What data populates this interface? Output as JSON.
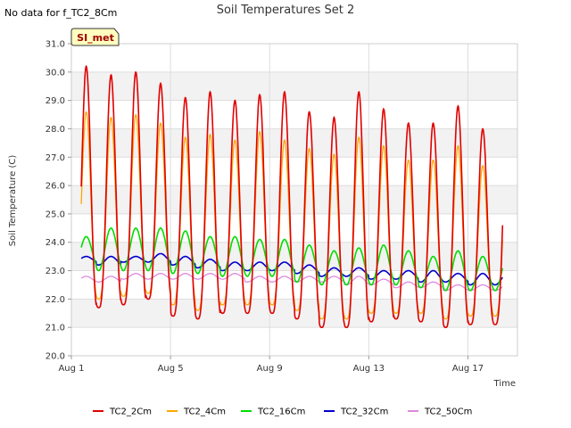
{
  "header": {
    "no_data_text": "No data for f_TC2_8Cm",
    "badge_label": "SI_met"
  },
  "chart_data": {
    "type": "line",
    "title": "Soil Temperatures Set 2",
    "xlabel": "Time",
    "ylabel": "Soil Temperature (C)",
    "ylim": [
      20.0,
      31.0
    ],
    "yticks": [
      "20.0",
      "21.0",
      "22.0",
      "23.0",
      "24.0",
      "25.0",
      "26.0",
      "27.0",
      "28.0",
      "29.0",
      "30.0",
      "31.0"
    ],
    "xlim_days": [
      1,
      19
    ],
    "xticks": [
      {
        "day": 1,
        "label": "Aug 1"
      },
      {
        "day": 5,
        "label": "Aug 5"
      },
      {
        "day": 9,
        "label": "Aug 9"
      },
      {
        "day": 13,
        "label": "Aug 13"
      },
      {
        "day": 17,
        "label": "Aug 17"
      }
    ],
    "grid": true,
    "legend_position": "bottom",
    "series": [
      {
        "name": "TC2_2Cm",
        "color": "#e00000",
        "daily_max": [
          30.2,
          29.9,
          30.0,
          29.6,
          29.1,
          29.3,
          29.0,
          29.2,
          29.3,
          28.6,
          28.4,
          29.3,
          28.7,
          28.2,
          28.2,
          28.8,
          28.0
        ],
        "daily_min": [
          21.6,
          21.7,
          21.8,
          22.0,
          21.4,
          21.3,
          21.5,
          21.5,
          21.5,
          21.3,
          21.0,
          21.0,
          21.2,
          21.3,
          21.2,
          21.0,
          21.1
        ]
      },
      {
        "name": "TC2_4Cm",
        "color": "#ffa500",
        "daily_max": [
          28.6,
          28.4,
          28.5,
          28.2,
          27.7,
          27.8,
          27.6,
          27.9,
          27.6,
          27.3,
          27.1,
          27.7,
          27.4,
          26.9,
          26.9,
          27.4,
          26.7
        ],
        "daily_min": [
          22.0,
          22.0,
          22.1,
          22.2,
          21.8,
          21.6,
          21.8,
          21.8,
          21.8,
          21.6,
          21.3,
          21.3,
          21.5,
          21.5,
          21.5,
          21.3,
          21.4
        ]
      },
      {
        "name": "TC2_16Cm",
        "color": "#00dd00",
        "daily_max": [
          24.2,
          24.5,
          24.5,
          24.5,
          24.4,
          24.2,
          24.2,
          24.1,
          24.1,
          23.9,
          23.7,
          23.8,
          23.9,
          23.7,
          23.5,
          23.7,
          23.5
        ],
        "daily_min": [
          23.1,
          23.0,
          23.0,
          23.0,
          22.9,
          22.9,
          22.8,
          22.8,
          22.8,
          22.6,
          22.5,
          22.5,
          22.5,
          22.5,
          22.4,
          22.3,
          22.3
        ]
      },
      {
        "name": "TC2_32Cm",
        "color": "#0000cc",
        "daily_max": [
          23.5,
          23.5,
          23.5,
          23.6,
          23.5,
          23.4,
          23.3,
          23.3,
          23.3,
          23.2,
          23.1,
          23.1,
          23.0,
          23.0,
          23.0,
          22.9,
          22.9
        ],
        "daily_min": [
          23.3,
          23.2,
          23.3,
          23.3,
          23.2,
          23.1,
          23.0,
          23.0,
          23.0,
          22.9,
          22.8,
          22.8,
          22.7,
          22.7,
          22.6,
          22.6,
          22.5
        ]
      },
      {
        "name": "TC2_50Cm",
        "color": "#dd88dd",
        "daily_max": [
          22.8,
          22.8,
          22.9,
          22.9,
          22.9,
          22.9,
          22.9,
          22.8,
          22.8,
          22.8,
          22.8,
          22.8,
          22.7,
          22.6,
          22.6,
          22.5,
          22.5
        ],
        "daily_min": [
          22.6,
          22.6,
          22.7,
          22.7,
          22.7,
          22.7,
          22.7,
          22.6,
          22.6,
          22.6,
          22.6,
          22.5,
          22.5,
          22.4,
          22.4,
          22.3,
          22.3
        ]
      }
    ]
  }
}
